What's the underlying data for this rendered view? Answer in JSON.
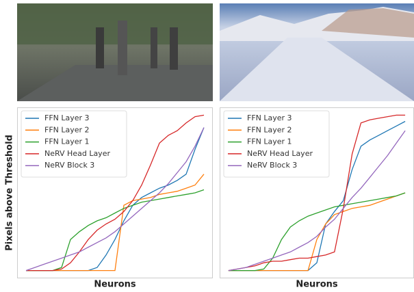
{
  "chart_data": [
    {
      "type": "line",
      "y_label": "Pixels above Threshold",
      "x_label": "Neurons",
      "legend": "upper left",
      "grid": false,
      "xlim": [
        -5,
        105
      ],
      "ylim": [
        -0.05,
        1.05
      ],
      "x": [
        0,
        5,
        10,
        15,
        20,
        25,
        30,
        35,
        40,
        45,
        50,
        55,
        60,
        65,
        70,
        75,
        80,
        85,
        90,
        95,
        100
      ],
      "series": [
        {
          "name": "FFN Layer 3",
          "color": "#1f77b4",
          "values": [
            0,
            0,
            0,
            0,
            0,
            0,
            0,
            0,
            0.02,
            0.1,
            0.2,
            0.32,
            0.42,
            0.47,
            0.5,
            0.53,
            0.55,
            0.58,
            0.62,
            0.78,
            0.92
          ]
        },
        {
          "name": "FFN Layer 2",
          "color": "#ff7f0e",
          "values": [
            0,
            0,
            0,
            0,
            0,
            0,
            0,
            0,
            0,
            0,
            0,
            0.42,
            0.45,
            0.46,
            0.47,
            0.49,
            0.5,
            0.51,
            0.53,
            0.55,
            0.62
          ]
        },
        {
          "name": "FFN Layer 1",
          "color": "#2ca02c",
          "values": [
            0,
            0,
            0,
            0,
            0.02,
            0.2,
            0.25,
            0.29,
            0.32,
            0.34,
            0.37,
            0.4,
            0.42,
            0.44,
            0.45,
            0.46,
            0.47,
            0.48,
            0.49,
            0.5,
            0.52
          ]
        },
        {
          "name": "NeRV Head Layer",
          "color": "#d62728",
          "values": [
            0,
            0,
            0,
            0,
            0.01,
            0.05,
            0.12,
            0.2,
            0.26,
            0.3,
            0.33,
            0.38,
            0.45,
            0.55,
            0.68,
            0.82,
            0.87,
            0.9,
            0.95,
            0.99,
            1.0
          ]
        },
        {
          "name": "NeRV Block 3",
          "color": "#9467bd",
          "values": [
            0,
            0.02,
            0.04,
            0.06,
            0.08,
            0.1,
            0.12,
            0.15,
            0.18,
            0.21,
            0.25,
            0.3,
            0.35,
            0.4,
            0.45,
            0.5,
            0.56,
            0.63,
            0.7,
            0.8,
            0.92
          ]
        }
      ]
    },
    {
      "type": "line",
      "x_label": "Neurons",
      "legend": "upper left",
      "grid": false,
      "xlim": [
        -5,
        105
      ],
      "ylim": [
        -0.05,
        1.05
      ],
      "x": [
        0,
        5,
        10,
        15,
        20,
        25,
        30,
        35,
        40,
        45,
        50,
        55,
        60,
        65,
        70,
        75,
        80,
        85,
        90,
        95,
        100
      ],
      "series": [
        {
          "name": "FFN Layer 3",
          "color": "#1f77b4",
          "values": [
            0,
            0,
            0,
            0,
            0,
            0,
            0,
            0,
            0,
            0,
            0.05,
            0.3,
            0.38,
            0.45,
            0.65,
            0.8,
            0.84,
            0.87,
            0.9,
            0.93,
            0.96
          ]
        },
        {
          "name": "FFN Layer 2",
          "color": "#ff7f0e",
          "values": [
            0,
            0,
            0,
            0,
            0,
            0,
            0,
            0,
            0,
            0,
            0.2,
            0.3,
            0.36,
            0.38,
            0.4,
            0.41,
            0.42,
            0.44,
            0.46,
            0.48,
            0.5
          ]
        },
        {
          "name": "FFN Layer 1",
          "color": "#2ca02c",
          "values": [
            0,
            0,
            0,
            0,
            0.01,
            0.08,
            0.2,
            0.28,
            0.32,
            0.35,
            0.37,
            0.39,
            0.41,
            0.42,
            0.43,
            0.44,
            0.45,
            0.46,
            0.47,
            0.48,
            0.5
          ]
        },
        {
          "name": "NeRV Head Layer",
          "color": "#d62728",
          "values": [
            0,
            0.01,
            0.02,
            0.03,
            0.05,
            0.06,
            0.06,
            0.07,
            0.08,
            0.08,
            0.09,
            0.1,
            0.12,
            0.4,
            0.75,
            0.95,
            0.97,
            0.98,
            0.99,
            1.0,
            1.0
          ]
        },
        {
          "name": "NeRV Block 3",
          "color": "#9467bd",
          "values": [
            0,
            0.01,
            0.02,
            0.04,
            0.06,
            0.08,
            0.1,
            0.12,
            0.15,
            0.18,
            0.22,
            0.28,
            0.33,
            0.4,
            0.47,
            0.53,
            0.6,
            0.67,
            0.74,
            0.82,
            0.9
          ]
        }
      ]
    }
  ]
}
